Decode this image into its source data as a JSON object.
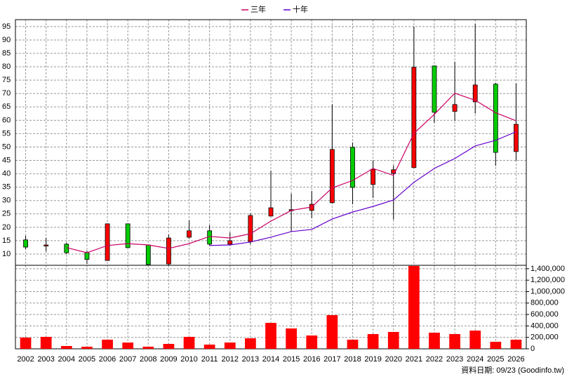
{
  "chart_data": [
    {
      "type": "candlestick",
      "open": [
        15.3,
        13.0,
        13.7,
        10.5,
        7.6,
        21.3,
        13.4,
        6.3,
        16.3,
        18.7,
        13.7,
        14.7,
        24.2,
        26.3,
        26.3,
        29.2,
        49.9,
        36.0,
        40.2,
        42.3,
        80.3,
        63.3,
        66.9,
        73.5,
        48.3
      ],
      "high": [
        16.8,
        16.0,
        14.2,
        11.3,
        21.3,
        21.3,
        13.6,
        17.3,
        22.6,
        20.8,
        18.1,
        25.2,
        41.2,
        32.6,
        33.6,
        65.9,
        51.7,
        44.9,
        43.1,
        95.0,
        80.3,
        81.9,
        96.0,
        74.0,
        73.8
      ],
      "low": [
        11.8,
        11.0,
        10.0,
        6.3,
        7.6,
        12.4,
        6.0,
        5.8,
        15.8,
        13.2,
        13.2,
        13.7,
        24.2,
        18.4,
        23.4,
        28.9,
        28.6,
        31.0,
        22.9,
        42.3,
        59.0,
        59.8,
        62.5,
        43.0,
        44.9
      ],
      "close": [
        12.6,
        13.4,
        10.5,
        8.0,
        21.3,
        12.4,
        6.1,
        16.0,
        18.7,
        13.7,
        15.0,
        24.4,
        27.3,
        26.6,
        28.6,
        49.1,
        34.9,
        41.7,
        41.5,
        79.8,
        63.0,
        65.9,
        73.2,
        48.0,
        58.5
      ],
      "up_color": "#ff0000",
      "down_color": "#00cc00",
      "series": [
        {
          "name": "三年",
          "color": "#cc0066",
          "values": [
            null,
            null,
            12.4,
            10.5,
            13.2,
            13.9,
            13.4,
            12.1,
            13.9,
            16.6,
            16.0,
            17.6,
            22.3,
            26.3,
            27.6,
            34.7,
            37.5,
            42.0,
            39.4,
            55.1,
            62.2,
            70.1,
            67.5,
            62.8,
            59.8
          ]
        },
        {
          "name": "十年",
          "color": "#6600cc",
          "values": [
            null,
            null,
            null,
            null,
            null,
            null,
            null,
            null,
            null,
            13.2,
            13.4,
            14.5,
            16.3,
            18.4,
            19.2,
            23.1,
            25.7,
            27.8,
            30.2,
            36.8,
            42.0,
            45.7,
            50.4,
            52.5,
            55.7
          ]
        }
      ],
      "ylim": [
        5.8,
        97.6
      ],
      "yticks": [
        10,
        15,
        20,
        25,
        30,
        35,
        40,
        45,
        50,
        55,
        60,
        65,
        70,
        75,
        80,
        85,
        90,
        95
      ],
      "grid": true
    },
    {
      "type": "bar",
      "categories": [
        "2002",
        "2003",
        "2004",
        "2005",
        "2006",
        "2007",
        "2008",
        "2009",
        "2010",
        "2011",
        "2012",
        "2013",
        "2014",
        "2015",
        "2016",
        "2017",
        "2018",
        "2019",
        "2020",
        "2021",
        "2022",
        "2023",
        "2024",
        "2025",
        "2026"
      ],
      "values": [
        196000,
        209000,
        49000,
        37000,
        160000,
        110000,
        37000,
        86000,
        209000,
        74000,
        110000,
        184000,
        454000,
        356000,
        233000,
        589000,
        160000,
        258000,
        295000,
        1449000,
        282000,
        258000,
        319000,
        123000,
        160000
      ],
      "color": "#ff0000",
      "ylim": [
        0,
        1460000
      ],
      "yticks": [
        0,
        {
          "value": 200000,
          "label": "200,000"
        },
        {
          "value": 400000,
          "label": "400,000"
        },
        {
          "value": 600000,
          "label": "600,000"
        },
        {
          "value": 800000,
          "label": "800,000"
        },
        {
          "value": 1000000,
          "label": "1,000,000"
        },
        {
          "value": 1200000,
          "label": "1,200,000"
        },
        {
          "value": 1400000,
          "label": "1,400,000"
        }
      ],
      "grid": true,
      "footnote": "資料日期: 09/23 (Goodinfo.tw)"
    }
  ]
}
